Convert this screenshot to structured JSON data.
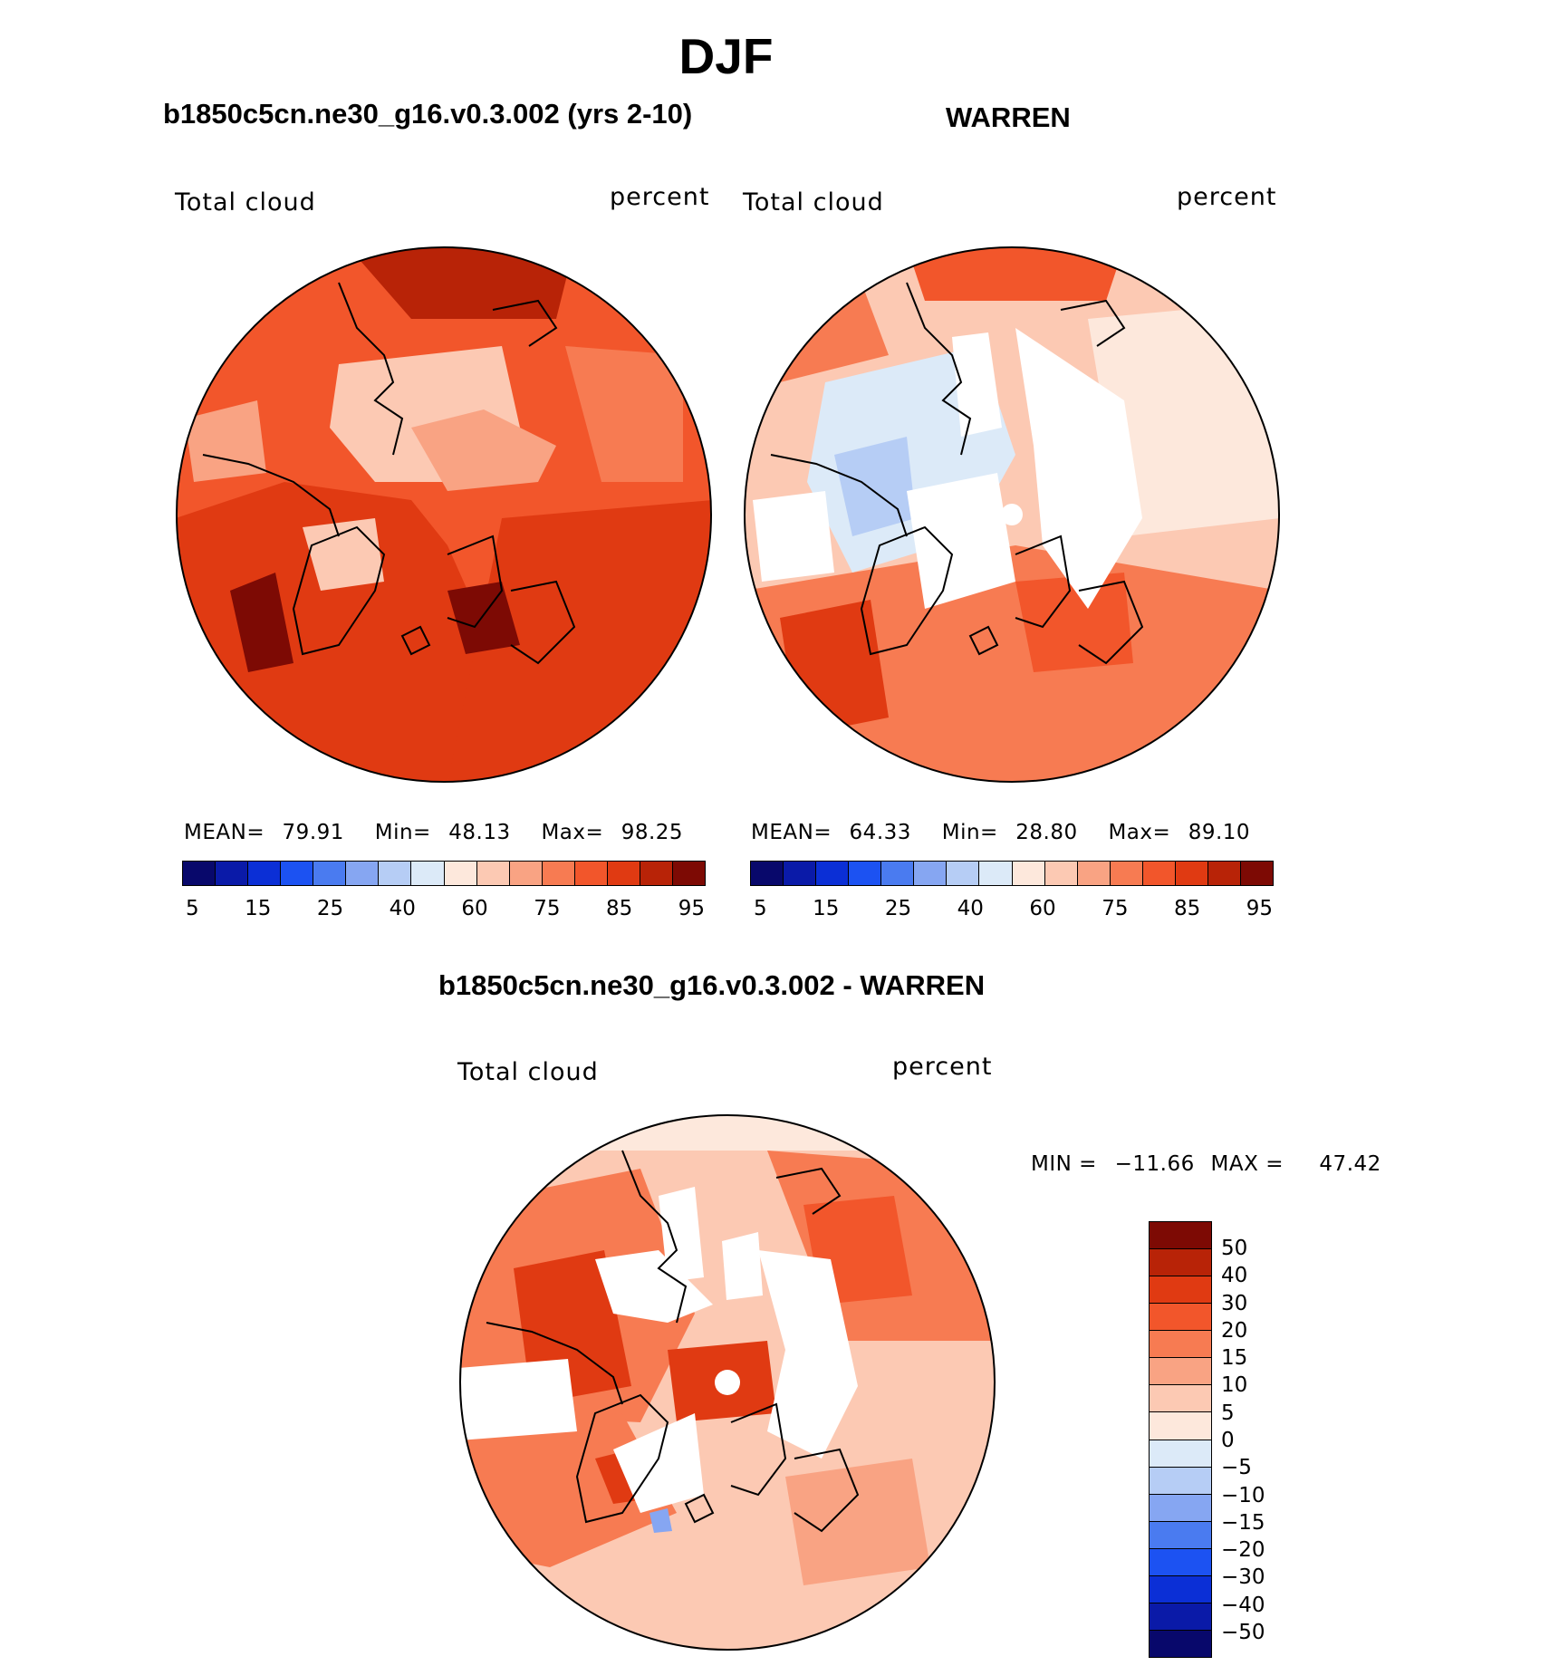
{
  "title": "DJF",
  "panels": [
    {
      "subtitle": "b1850c5cn.ne30_g16.v0.3.002 (yrs 2-10)",
      "left_label": "Total cloud",
      "right_label": "percent",
      "stats": {
        "mean_label": "MEAN=",
        "mean": "79.91",
        "min_label": "Min=",
        "min": "48.13",
        "max_label": "Max=",
        "max": "98.25"
      },
      "colorbar_ticks": [
        "5",
        "15",
        "25",
        "40",
        "60",
        "75",
        "85",
        "95"
      ]
    },
    {
      "subtitle": "WARREN",
      "left_label": "Total cloud",
      "right_label": "percent",
      "stats": {
        "mean_label": "MEAN=",
        "mean": "64.33",
        "min_label": "Min=",
        "min": "28.80",
        "max_label": "Max=",
        "max": "89.10"
      },
      "colorbar_ticks": [
        "5",
        "15",
        "25",
        "40",
        "60",
        "75",
        "85",
        "95"
      ]
    }
  ],
  "diff_panel": {
    "subtitle": "b1850c5cn.ne30_g16.v0.3.002 - WARREN",
    "left_label": "Total cloud",
    "right_label": "percent",
    "min_label": "MIN =",
    "min": "−11.66",
    "max_label": "MAX =",
    "max": "47.42",
    "colorbar_ticks": [
      "50",
      "40",
      "30",
      "20",
      "15",
      "10",
      "5",
      "0",
      "−5",
      "−10",
      "−15",
      "−20",
      "−30",
      "−40",
      "−50"
    ]
  },
  "colors": {
    "abs_scale": [
      "#08086b",
      "#0a1aa8",
      "#0b2fd6",
      "#1c52f2",
      "#4a7bf0",
      "#86a6f2",
      "#b6cdf5",
      "#dceaf8",
      "#fde8dc",
      "#fcc9b3",
      "#f9a383",
      "#f77b52",
      "#f2562b",
      "#e03a12",
      "#b82307",
      "#7d0a04"
    ],
    "diff_scale": [
      "#7d0a04",
      "#b82307",
      "#e03a12",
      "#f2562b",
      "#f77b52",
      "#f9a383",
      "#fcc9b3",
      "#fde8dc",
      "#dceaf8",
      "#b6cdf5",
      "#86a6f2",
      "#4a7bf0",
      "#1c52f2",
      "#0b2fd6",
      "#0a1aa8",
      "#08086b"
    ]
  }
}
